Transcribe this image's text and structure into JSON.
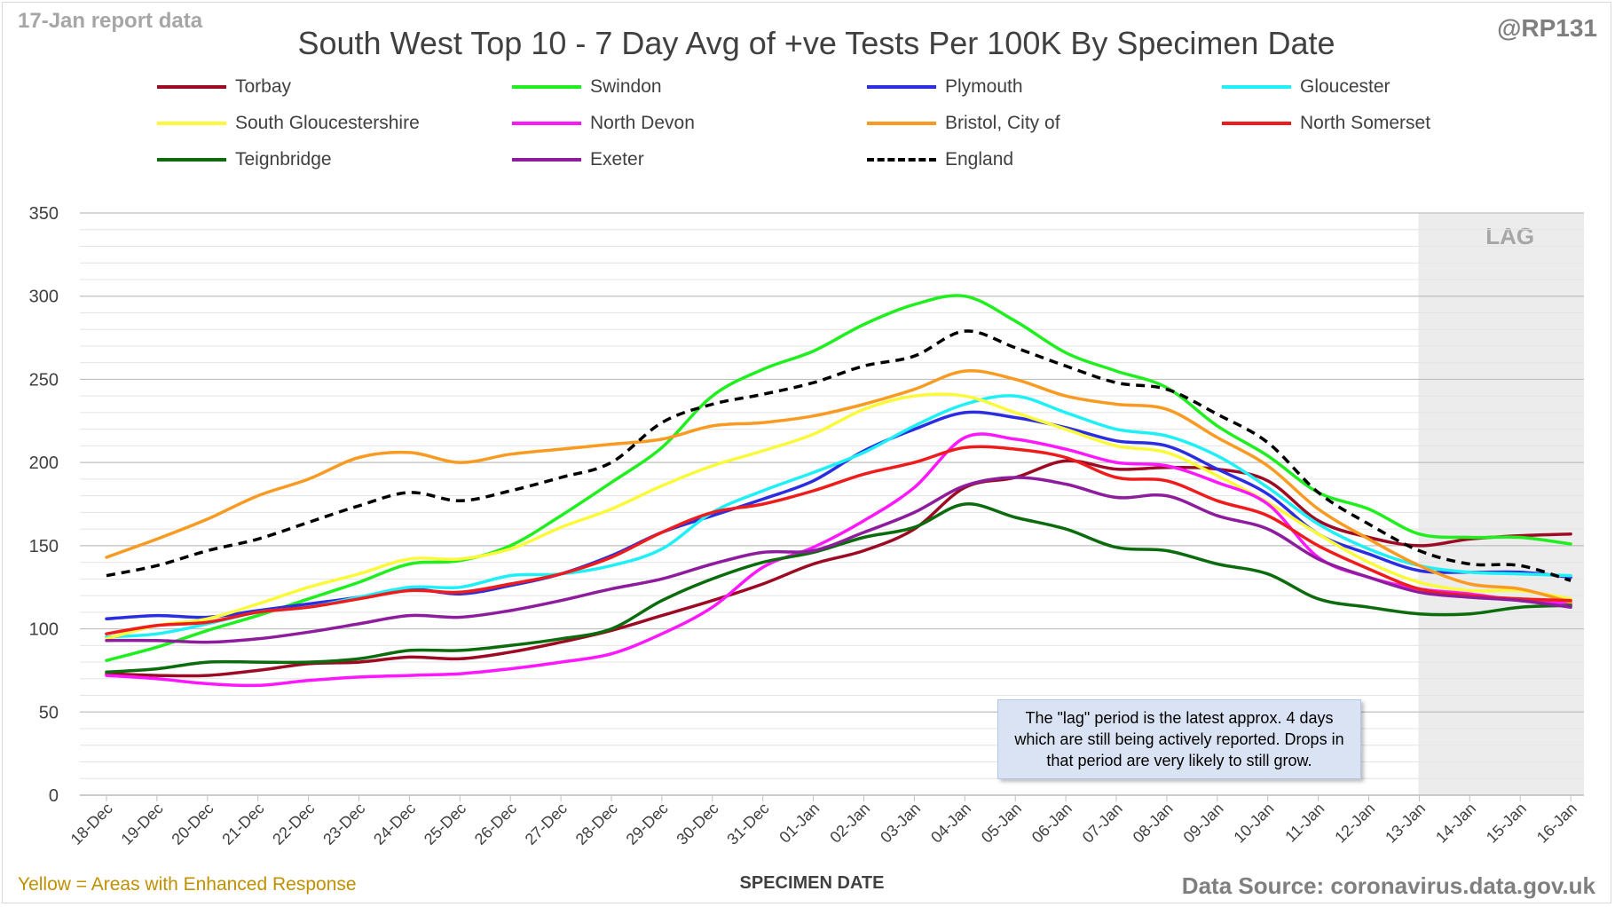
{
  "header": {
    "report_tag": "17-Jan report data",
    "handle": "@RP131"
  },
  "footer": {
    "enhanced_note": "Yellow = Areas with Enhanced Response",
    "source": "Data Source: coronavirus.data.gov.uk"
  },
  "note_box": "The \"lag\" period is the latest approx. 4 days which are still being actively reported.  Drops in that period are very likely to still grow.",
  "chart_data": {
    "type": "line",
    "title": "South West Top 10 - 7 Day Avg of +ve Tests Per 100K By Specimen Date",
    "xlabel": "SPECIMEN DATE",
    "ylabel": "",
    "ylim": [
      0,
      350
    ],
    "yticks": [
      0,
      50,
      100,
      150,
      200,
      250,
      300,
      350
    ],
    "grid": true,
    "legend_position": "top",
    "lag_label": "LAG",
    "lag_start": "13-Jan",
    "categories": [
      "18-Dec",
      "19-Dec",
      "20-Dec",
      "21-Dec",
      "22-Dec",
      "23-Dec",
      "24-Dec",
      "25-Dec",
      "26-Dec",
      "27-Dec",
      "28-Dec",
      "29-Dec",
      "30-Dec",
      "31-Dec",
      "01-Jan",
      "02-Jan",
      "03-Jan",
      "04-Jan",
      "05-Jan",
      "06-Jan",
      "07-Jan",
      "08-Jan",
      "09-Jan",
      "10-Jan",
      "11-Jan",
      "12-Jan",
      "13-Jan",
      "14-Jan",
      "15-Jan",
      "16-Jan"
    ],
    "series": [
      {
        "name": "Torbay",
        "color": "#9c0b23",
        "dash": false,
        "values": [
          73,
          72,
          72,
          75,
          79,
          80,
          83,
          82,
          86,
          92,
          99,
          108,
          117,
          127,
          139,
          147,
          160,
          185,
          191,
          201,
          196,
          197,
          196,
          189,
          165,
          155,
          150,
          154,
          156,
          157
        ]
      },
      {
        "name": "Swindon",
        "color": "#1fef1f",
        "dash": false,
        "values": [
          81,
          89,
          99,
          108,
          118,
          128,
          139,
          141,
          150,
          168,
          188,
          209,
          240,
          256,
          267,
          283,
          295,
          300,
          285,
          266,
          255,
          245,
          222,
          204,
          182,
          172,
          157,
          155,
          155,
          151
        ]
      },
      {
        "name": "Plymouth",
        "color": "#2b2ee0",
        "dash": false,
        "values": [
          106,
          108,
          107,
          111,
          115,
          119,
          124,
          121,
          126,
          133,
          144,
          158,
          168,
          178,
          189,
          207,
          220,
          230,
          227,
          221,
          213,
          210,
          196,
          181,
          157,
          145,
          135,
          134,
          134,
          131
        ]
      },
      {
        "name": "Gloucester",
        "color": "#1ff0f7",
        "dash": false,
        "values": [
          95,
          97,
          103,
          110,
          113,
          119,
          125,
          125,
          132,
          133,
          138,
          148,
          170,
          183,
          194,
          206,
          222,
          235,
          240,
          230,
          220,
          216,
          204,
          185,
          163,
          148,
          138,
          134,
          133,
          132
        ]
      },
      {
        "name": "South Gloucestershire",
        "color": "#fafa3a",
        "dash": false,
        "values": [
          94,
          102,
          106,
          115,
          125,
          133,
          142,
          142,
          148,
          161,
          172,
          186,
          198,
          207,
          217,
          232,
          240,
          240,
          230,
          220,
          210,
          206,
          192,
          176,
          157,
          140,
          128,
          123,
          123,
          118
        ]
      },
      {
        "name": "North Devon",
        "color": "#ff18ff",
        "dash": false,
        "values": [
          72,
          70,
          67,
          66,
          69,
          71,
          72,
          73,
          76,
          80,
          85,
          97,
          113,
          137,
          149,
          165,
          185,
          215,
          214,
          208,
          200,
          198,
          188,
          175,
          143,
          131,
          124,
          121,
          117,
          115
        ]
      },
      {
        "name": "Bristol, City of",
        "color": "#f99b22",
        "dash": false,
        "values": [
          143,
          154,
          166,
          180,
          190,
          203,
          206,
          200,
          205,
          208,
          211,
          214,
          222,
          224,
          228,
          235,
          244,
          255,
          250,
          240,
          235,
          232,
          215,
          198,
          172,
          154,
          138,
          127,
          124,
          116
        ]
      },
      {
        "name": "North Somerset",
        "color": "#ee1c1c",
        "dash": false,
        "values": [
          97,
          102,
          104,
          110,
          113,
          118,
          123,
          122,
          127,
          133,
          143,
          158,
          170,
          175,
          183,
          193,
          200,
          209,
          208,
          203,
          191,
          189,
          177,
          168,
          150,
          136,
          124,
          120,
          118,
          117
        ]
      },
      {
        "name": "Teignbridge",
        "color": "#0c6b0c",
        "dash": false,
        "values": [
          74,
          76,
          80,
          80,
          80,
          82,
          87,
          87,
          90,
          94,
          100,
          117,
          130,
          140,
          146,
          155,
          161,
          175,
          167,
          160,
          149,
          147,
          139,
          133,
          118,
          113,
          109,
          109,
          113,
          114
        ]
      },
      {
        "name": "Exeter",
        "color": "#8e1d9e",
        "dash": false,
        "values": [
          93,
          93,
          92,
          94,
          98,
          103,
          108,
          107,
          111,
          117,
          124,
          130,
          139,
          146,
          147,
          158,
          170,
          186,
          191,
          187,
          179,
          180,
          168,
          160,
          142,
          131,
          122,
          119,
          117,
          113
        ]
      },
      {
        "name": "England",
        "color": "#000000",
        "dash": true,
        "values": [
          132,
          138,
          147,
          154,
          164,
          174,
          182,
          177,
          183,
          191,
          200,
          224,
          235,
          241,
          248,
          258,
          264,
          279,
          269,
          258,
          248,
          244,
          229,
          212,
          182,
          163,
          147,
          139,
          138,
          129
        ]
      }
    ]
  }
}
